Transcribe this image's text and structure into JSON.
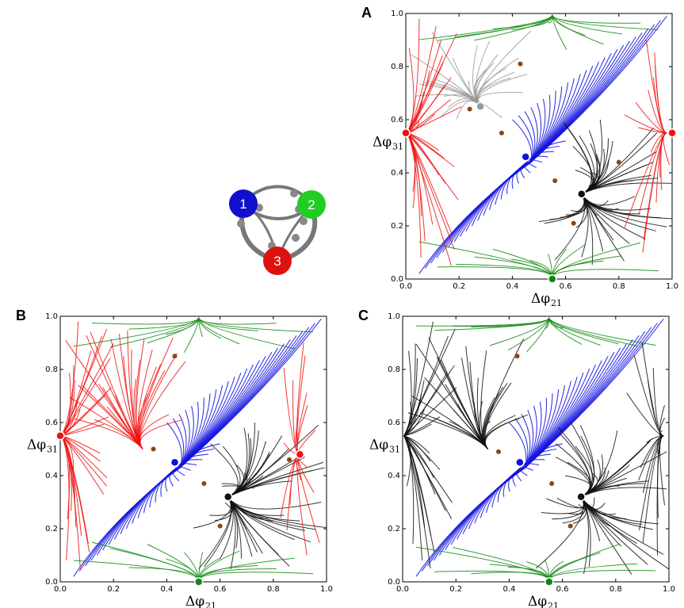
{
  "figure": {
    "network": {
      "nodes": [
        {
          "id": "1",
          "label": "1",
          "color": "#1010cc"
        },
        {
          "id": "2",
          "label": "2",
          "color": "#22cc22"
        },
        {
          "id": "3",
          "label": "3",
          "color": "#dd1111"
        }
      ],
      "edge_color": "#777777"
    }
  },
  "chart_data": [
    {
      "panel": "A",
      "type": "scatter",
      "xlabel": "Δφ",
      "xlabel_sub": "21",
      "ylabel": "Δφ",
      "ylabel_sub": "31",
      "xlim": [
        0,
        1
      ],
      "ylim": [
        0,
        1
      ],
      "xticks": [
        "0.0",
        "0.2",
        "0.4",
        "0.6",
        "0.8",
        "1.0"
      ],
      "yticks": [
        "0.0",
        "0.2",
        "0.4",
        "0.6",
        "0.8",
        "1.0"
      ],
      "stable_points": [
        {
          "x": 0.0,
          "y": 0.55,
          "color": "#ee1111"
        },
        {
          "x": 0.55,
          "y": 0.0,
          "color": "#118811"
        },
        {
          "x": 0.28,
          "y": 0.65,
          "color": "#999999"
        },
        {
          "x": 0.45,
          "y": 0.46,
          "color": "#1010dd"
        },
        {
          "x": 0.66,
          "y": 0.32,
          "color": "#111111"
        },
        {
          "x": 1.0,
          "y": 0.55,
          "color": "#ee1111"
        }
      ],
      "saddle_points": [
        {
          "x": 0.43,
          "y": 0.81
        },
        {
          "x": 0.24,
          "y": 0.64
        },
        {
          "x": 0.36,
          "y": 0.55
        },
        {
          "x": 0.56,
          "y": 0.37
        },
        {
          "x": 0.63,
          "y": 0.21
        },
        {
          "x": 0.8,
          "y": 0.44
        }
      ],
      "basin_colors": {
        "left": "#ee1111",
        "center": "#1414e0",
        "upper": "#999999",
        "lower": "#111111",
        "green": "#118811",
        "right": "#ee1111"
      }
    },
    {
      "panel": "B",
      "type": "scatter",
      "xlabel": "Δφ",
      "xlabel_sub": "21",
      "ylabel": "Δφ",
      "ylabel_sub": "31",
      "xlim": [
        0,
        1
      ],
      "ylim": [
        0,
        1
      ],
      "xticks": [
        "0.0",
        "0.2",
        "0.4",
        "0.6",
        "0.8",
        "1.0"
      ],
      "yticks": [
        "0.0",
        "0.2",
        "0.4",
        "0.6",
        "0.8",
        "1.0"
      ],
      "stable_points": [
        {
          "x": 0.0,
          "y": 0.55,
          "color": "#ee1111"
        },
        {
          "x": 0.52,
          "y": 0.0,
          "color": "#118811"
        },
        {
          "x": 0.43,
          "y": 0.45,
          "color": "#1010dd"
        },
        {
          "x": 0.63,
          "y": 0.32,
          "color": "#111111"
        },
        {
          "x": 0.9,
          "y": 0.48,
          "color": "#ee1111"
        }
      ],
      "saddle_points": [
        {
          "x": 0.43,
          "y": 0.85
        },
        {
          "x": 0.35,
          "y": 0.5
        },
        {
          "x": 0.54,
          "y": 0.37
        },
        {
          "x": 0.6,
          "y": 0.21
        },
        {
          "x": 0.86,
          "y": 0.46
        }
      ],
      "basin_colors": {
        "left": "#ee1111",
        "center": "#1414e0",
        "upper": "#ee1111",
        "lower": "#111111",
        "green": "#118811",
        "right": "#ee1111"
      }
    },
    {
      "panel": "C",
      "type": "scatter",
      "xlabel": "Δφ",
      "xlabel_sub": "21",
      "ylabel": "Δφ",
      "ylabel_sub": "31",
      "xlim": [
        0,
        1
      ],
      "ylim": [
        0,
        1
      ],
      "xticks": [
        "0.0",
        "0.2",
        "0.4",
        "0.6",
        "0.8",
        "1.0"
      ],
      "yticks": [
        "0.0",
        "0.2",
        "0.4",
        "0.6",
        "0.8",
        "1.0"
      ],
      "stable_points": [
        {
          "x": 0.55,
          "y": 0.0,
          "color": "#118811"
        },
        {
          "x": 0.44,
          "y": 0.45,
          "color": "#1010dd"
        },
        {
          "x": 0.67,
          "y": 0.32,
          "color": "#111111"
        }
      ],
      "saddle_points": [
        {
          "x": 0.43,
          "y": 0.85
        },
        {
          "x": 0.36,
          "y": 0.49
        },
        {
          "x": 0.56,
          "y": 0.37
        },
        {
          "x": 0.63,
          "y": 0.21
        }
      ],
      "basin_colors": {
        "left": "#111111",
        "center": "#1414e0",
        "upper": "#111111",
        "lower": "#111111",
        "green": "#118811",
        "right": "#111111"
      }
    }
  ]
}
